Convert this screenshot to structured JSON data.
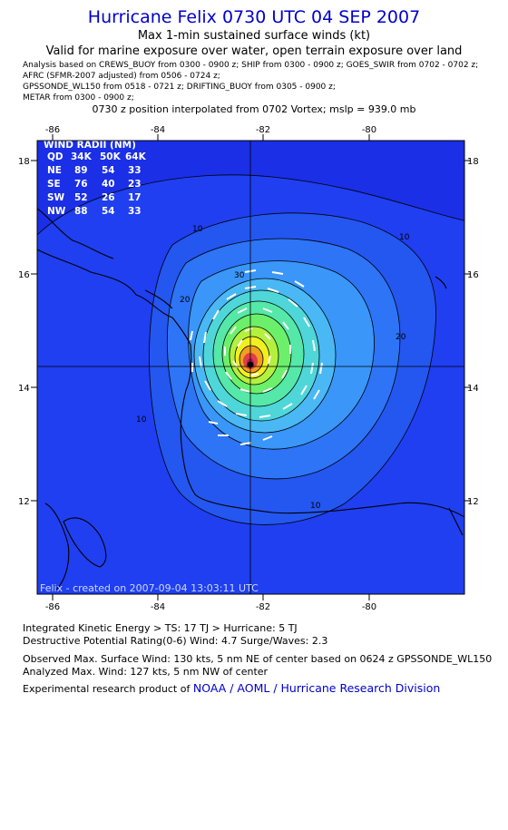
{
  "header": {
    "title": "Hurricane Felix 0730 UTC 04 SEP 2007",
    "subtitle": "Max 1-min sustained surface winds (kt)",
    "validity": "Valid for marine exposure over water, open terrain exposure over land"
  },
  "analysis_sources": [
    "Analysis based on  CREWS_BUOY from 0300 - 0900 z;  SHIP from 0300 - 0900 z;  GOES_SWIR from 0702 - 0702 z;",
    "AFRC (SFMR-2007 adjusted) from 0506 - 0724 z;",
    "GPSSONDE_WL150 from 0518 - 0721 z;  DRIFTING_BUOY from 0305 - 0900 z;",
    "METAR from 0300 - 0900 z;"
  ],
  "position_note": "0730 z position interpolated from 0702 Vortex; mslp = 939.0 mb",
  "map": {
    "lon_ticks": [
      "-86",
      "-84",
      "-82",
      "-80"
    ],
    "lat_ticks": [
      "18",
      "16",
      "14",
      "12"
    ],
    "center": {
      "lon": -82.2,
      "lat": 14.4
    },
    "contour_labels": {
      "c10a": "10",
      "c10b": "10",
      "c10c": "10",
      "c10d": "10",
      "c20a": "20",
      "c20b": "20",
      "c30": "30"
    },
    "wind_radii": {
      "title": "WIND RADII (NM)",
      "header": [
        "QD",
        "34K",
        "50K",
        "64K"
      ],
      "rows": [
        [
          "NE",
          "89",
          "54",
          "33"
        ],
        [
          "SE",
          "76",
          "40",
          "23"
        ],
        [
          "SW",
          "52",
          "26",
          "17"
        ],
        [
          "NW",
          "88",
          "54",
          "33"
        ]
      ]
    },
    "footer_note": "Felix - created on 2007-09-04 13:03:11 UTC"
  },
  "footer": {
    "ike": "Integrated Kinetic Energy > TS: 17 TJ   > Hurricane: 5 TJ",
    "dpr": "Destructive Potential Rating(0-6)   Wind: 4.7 Surge/Waves: 2.3",
    "obs_max": "Observed Max. Surface Wind: 130 kts, 5 nm NE of center based on 0624 z GPSSONDE_WL150",
    "analyzed_max": "Analyzed Max. Wind: 127 kts, 5 nm NW of center",
    "credit_prefix": "Experimental research product of ",
    "credit_link": "NOAA / AOML / Hurricane Research Division"
  },
  "colors": {
    "background_field": "#1a2fe6",
    "title": "#0000cc",
    "contour_ramp": [
      "#2456f0",
      "#2d74f6",
      "#3a96f8",
      "#4ab8f4",
      "#4fd6d8",
      "#55e8a8",
      "#6cf06c",
      "#b4f040",
      "#f0f020",
      "#f0a020",
      "#e04040",
      "#b01870"
    ]
  }
}
